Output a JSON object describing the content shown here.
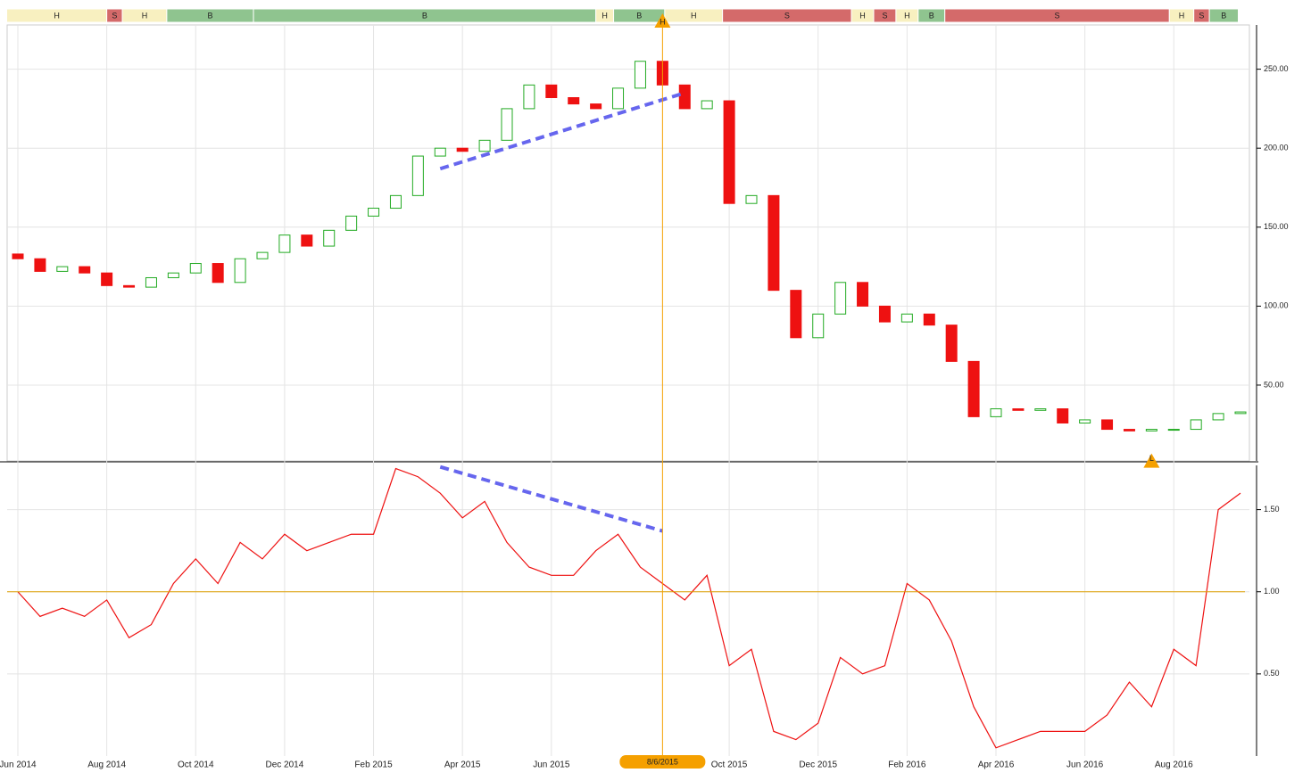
{
  "chart_data": [
    {
      "type": "candlestick",
      "categories": [
        "Jun 2014",
        null,
        null,
        null,
        "Aug 2014",
        null,
        null,
        null,
        "Oct 2014",
        null,
        null,
        null,
        "Dec 2014",
        null,
        null,
        null,
        "Feb 2015",
        null,
        null,
        null,
        "Apr 2015",
        null,
        null,
        null,
        "Jun 2015",
        null,
        null,
        null,
        null,
        null,
        null,
        null,
        "Oct 2015",
        null,
        null,
        null,
        "Dec 2015",
        null,
        null,
        null,
        "Feb 2016",
        null,
        null,
        null,
        "Apr 2016",
        null,
        null,
        null,
        "Jun 2016",
        null,
        null,
        null,
        "Aug 2016",
        null,
        null,
        null
      ],
      "open": [
        133,
        130,
        122,
        125,
        121,
        113,
        112,
        118,
        121,
        127,
        115,
        130,
        134,
        145,
        138,
        148,
        157,
        162,
        170,
        195,
        200,
        198,
        205,
        225,
        240,
        232,
        228,
        225,
        238,
        255,
        240,
        225,
        230,
        165,
        170,
        110,
        80,
        95,
        115,
        100,
        90,
        95,
        88,
        65,
        30,
        35,
        34,
        35,
        26,
        28,
        22,
        21,
        22,
        22,
        28,
        32
      ],
      "values": [
        130,
        122,
        125,
        121,
        113,
        112,
        118,
        121,
        127,
        115,
        130,
        134,
        145,
        138,
        148,
        157,
        162,
        170,
        195,
        200,
        198,
        205,
        225,
        240,
        232,
        228,
        225,
        238,
        255,
        240,
        225,
        230,
        165,
        170,
        110,
        80,
        95,
        115,
        100,
        90,
        95,
        88,
        65,
        30,
        35,
        34,
        35,
        26,
        28,
        22,
        21,
        22,
        22,
        28,
        32,
        33
      ],
      "up_color": "#22aa22",
      "down_color": "#ee1111",
      "ylim": [
        2,
        278
      ],
      "yticks": [
        {
          "value": 50,
          "label": "50.00"
        },
        {
          "value": 100,
          "label": "100.00"
        },
        {
          "value": 150,
          "label": "150.00"
        },
        {
          "value": 200,
          "label": "200.00"
        },
        {
          "value": 250,
          "label": "250.00"
        }
      ],
      "grid": true,
      "trend_line": {
        "color": "#6666ee",
        "from": [
          19,
          187
        ],
        "to": [
          30,
          235
        ]
      },
      "markers": [
        {
          "label": "H",
          "index": 29,
          "value": 265,
          "side": "top"
        },
        {
          "label": "L",
          "index": 51,
          "value": 18,
          "side": "bottom"
        }
      ],
      "signals": [
        {
          "label": "H",
          "start": 0,
          "end": 4.5,
          "color": "#f8f0c0"
        },
        {
          "label": "S",
          "start": 4.5,
          "end": 5.2,
          "color": "#d46a6a"
        },
        {
          "label": "H",
          "start": 5.2,
          "end": 7.2,
          "color": "#f8f0c0"
        },
        {
          "label": "B",
          "start": 7.2,
          "end": 11.1,
          "color": "#8fc48f"
        },
        {
          "label": "B",
          "start": 11.1,
          "end": 26.5,
          "color": "#8fc48f"
        },
        {
          "label": "H",
          "start": 26.5,
          "end": 27.3,
          "color": "#f8f0c0"
        },
        {
          "label": "B",
          "start": 27.3,
          "end": 29.6,
          "color": "#8fc48f"
        },
        {
          "label": "H",
          "start": 29.6,
          "end": 32.2,
          "color": "#f8f0c0"
        },
        {
          "label": "S",
          "start": 32.2,
          "end": 38,
          "color": "#d46a6a"
        },
        {
          "label": "H",
          "start": 38,
          "end": 39,
          "color": "#f8f0c0"
        },
        {
          "label": "S",
          "start": 39,
          "end": 40,
          "color": "#d46a6a"
        },
        {
          "label": "H",
          "start": 40,
          "end": 41,
          "color": "#f8f0c0"
        },
        {
          "label": "B",
          "start": 41,
          "end": 42.2,
          "color": "#8fc48f"
        },
        {
          "label": "S",
          "start": 42.2,
          "end": 52.3,
          "color": "#d46a6a"
        },
        {
          "label": "H",
          "start": 52.3,
          "end": 53.4,
          "color": "#f8f0c0"
        },
        {
          "label": "S",
          "start": 53.4,
          "end": 54.1,
          "color": "#d46a6a"
        },
        {
          "label": "B",
          "start": 54.1,
          "end": 55.4,
          "color": "#8fc48f"
        }
      ]
    },
    {
      "type": "line",
      "values": [
        1.0,
        0.85,
        0.9,
        0.85,
        0.95,
        0.72,
        0.8,
        1.05,
        1.2,
        1.05,
        1.3,
        1.2,
        1.35,
        1.25,
        1.3,
        1.35,
        1.35,
        1.75,
        1.7,
        1.6,
        1.45,
        1.55,
        1.3,
        1.15,
        1.1,
        1.1,
        1.25,
        1.35,
        1.15,
        1.05,
        0.95,
        1.1,
        0.55,
        0.65,
        0.15,
        0.1,
        0.2,
        0.6,
        0.5,
        0.55,
        1.05,
        0.95,
        0.7,
        0.3,
        0.05,
        0.1,
        0.15,
        0.15,
        0.15,
        0.25,
        0.45,
        0.3,
        0.65,
        0.55,
        1.5,
        1.6
      ],
      "color": "#ee1111",
      "ylim": [
        0,
        1.78
      ],
      "yticks": [
        {
          "value": 0.5,
          "label": "0.50"
        },
        {
          "value": 1.0,
          "label": "1.00"
        },
        {
          "value": 1.5,
          "label": "1.50"
        }
      ],
      "reference_line": {
        "value": 1.0,
        "color": "#e0a000"
      },
      "trend_line": {
        "color": "#6666ee",
        "from": [
          19,
          1.76
        ],
        "to": [
          29,
          1.37
        ]
      },
      "event": {
        "index": 29,
        "label": "8/6/2015",
        "color": "#f5a000"
      }
    }
  ]
}
